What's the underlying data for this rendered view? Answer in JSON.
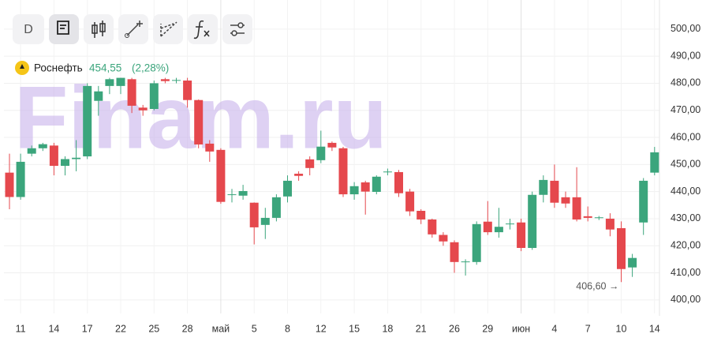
{
  "toolbar": {
    "period": "D"
  },
  "chart_data": {
    "type": "candlestick",
    "watermark": "Finam.ru",
    "legend": {
      "name": "Роснефть",
      "last": {
        "value": 454.55,
        "label": "454,55"
      },
      "change": "(2,28%)"
    },
    "annotation": "406,60 →",
    "up_color": "#3ba57c",
    "down_color": "#e5484d",
    "categories": [
      null,
      "11",
      null,
      null,
      "14",
      null,
      null,
      "17",
      null,
      null,
      "22",
      null,
      null,
      "25",
      null,
      null,
      "28",
      null,
      null,
      "май",
      null,
      null,
      "5",
      null,
      null,
      "8",
      null,
      null,
      "12",
      null,
      null,
      "15",
      null,
      null,
      "18",
      null,
      null,
      "21",
      null,
      null,
      "26",
      null,
      null,
      "29",
      null,
      null,
      "июн",
      null,
      null,
      "4",
      null,
      null,
      "7",
      null,
      null,
      "10",
      null,
      null,
      "14"
    ],
    "open": [
      447,
      438,
      454,
      456,
      457,
      449.5,
      452,
      453,
      473.5,
      479,
      479,
      481.5,
      471,
      470.5,
      481.5,
      481,
      481,
      473.8,
      457.7,
      455.4,
      438.8,
      438.5,
      435.9,
      427.7,
      430.3,
      438.2,
      446.6,
      451.9,
      451.6,
      458,
      456,
      439,
      443.4,
      439.9,
      447.2,
      447.2,
      440,
      432.9,
      429.7,
      424,
      421.3,
      414,
      414,
      428.9,
      425,
      428,
      428.6,
      419.2,
      438.8,
      444,
      437.9,
      437.9,
      430.9,
      430.3,
      430,
      426.5,
      412,
      428.6,
      447
    ],
    "high": [
      454,
      454,
      457,
      458,
      458,
      453,
      459,
      480,
      479,
      482,
      482,
      482,
      472,
      481,
      482,
      482,
      482,
      474,
      459,
      456,
      441,
      442.5,
      436,
      434,
      439,
      446,
      447.5,
      453,
      462.5,
      458.5,
      456.5,
      443.5,
      444,
      446,
      448.5,
      448,
      441,
      433.5,
      430,
      425,
      422,
      415,
      429,
      436.5,
      434,
      430,
      430,
      440,
      446,
      450,
      440,
      449,
      434.5,
      431,
      432,
      429,
      417,
      445,
      456.5
    ],
    "low": [
      433.5,
      437,
      453,
      455,
      446,
      446,
      447.5,
      452,
      468,
      476,
      476,
      469,
      468,
      470,
      480,
      480,
      471,
      456,
      451,
      435.5,
      436,
      437,
      420.5,
      422.5,
      429,
      436,
      444,
      446,
      450.5,
      455,
      438,
      437,
      431.5,
      439,
      446,
      438,
      431,
      428,
      423,
      420,
      410,
      409,
      413,
      424,
      423,
      426,
      418,
      418.5,
      436,
      434,
      434,
      429,
      429,
      429.5,
      423.5,
      406.6,
      408.5,
      424,
      446
    ],
    "close": [
      438,
      451,
      456,
      457.5,
      449.5,
      452,
      452.5,
      479,
      477,
      481.5,
      482,
      471.7,
      470,
      480,
      480.8,
      481.2,
      473.8,
      457.4,
      454.8,
      436.2,
      439,
      440.2,
      426.8,
      430.3,
      437.9,
      444,
      445.8,
      448.7,
      456.6,
      456.3,
      439,
      442,
      440,
      445.5,
      447.4,
      439.4,
      432.7,
      429.7,
      424.2,
      421.6,
      414,
      414.2,
      428,
      425,
      427,
      428.2,
      419.2,
      438.8,
      444.3,
      435.9,
      435.6,
      429.7,
      430.3,
      430.5,
      426,
      411.4,
      415.5,
      444,
      454.5
    ],
    "ylim": [
      395,
      508.7
    ],
    "yticks": [
      {
        "value": 400,
        "label": "400,00"
      },
      {
        "value": 410,
        "label": "410,00"
      },
      {
        "value": 420,
        "label": "420,00"
      },
      {
        "value": 430,
        "label": "430,00"
      },
      {
        "value": 440,
        "label": "440,00"
      },
      {
        "value": 450,
        "label": "450,00"
      },
      {
        "value": 460,
        "label": "460,00"
      },
      {
        "value": 470,
        "label": "470,00"
      },
      {
        "value": 480,
        "label": "480,00"
      },
      {
        "value": 490,
        "label": "490,00"
      },
      {
        "value": 500,
        "label": "500,00"
      }
    ],
    "grid": true
  }
}
